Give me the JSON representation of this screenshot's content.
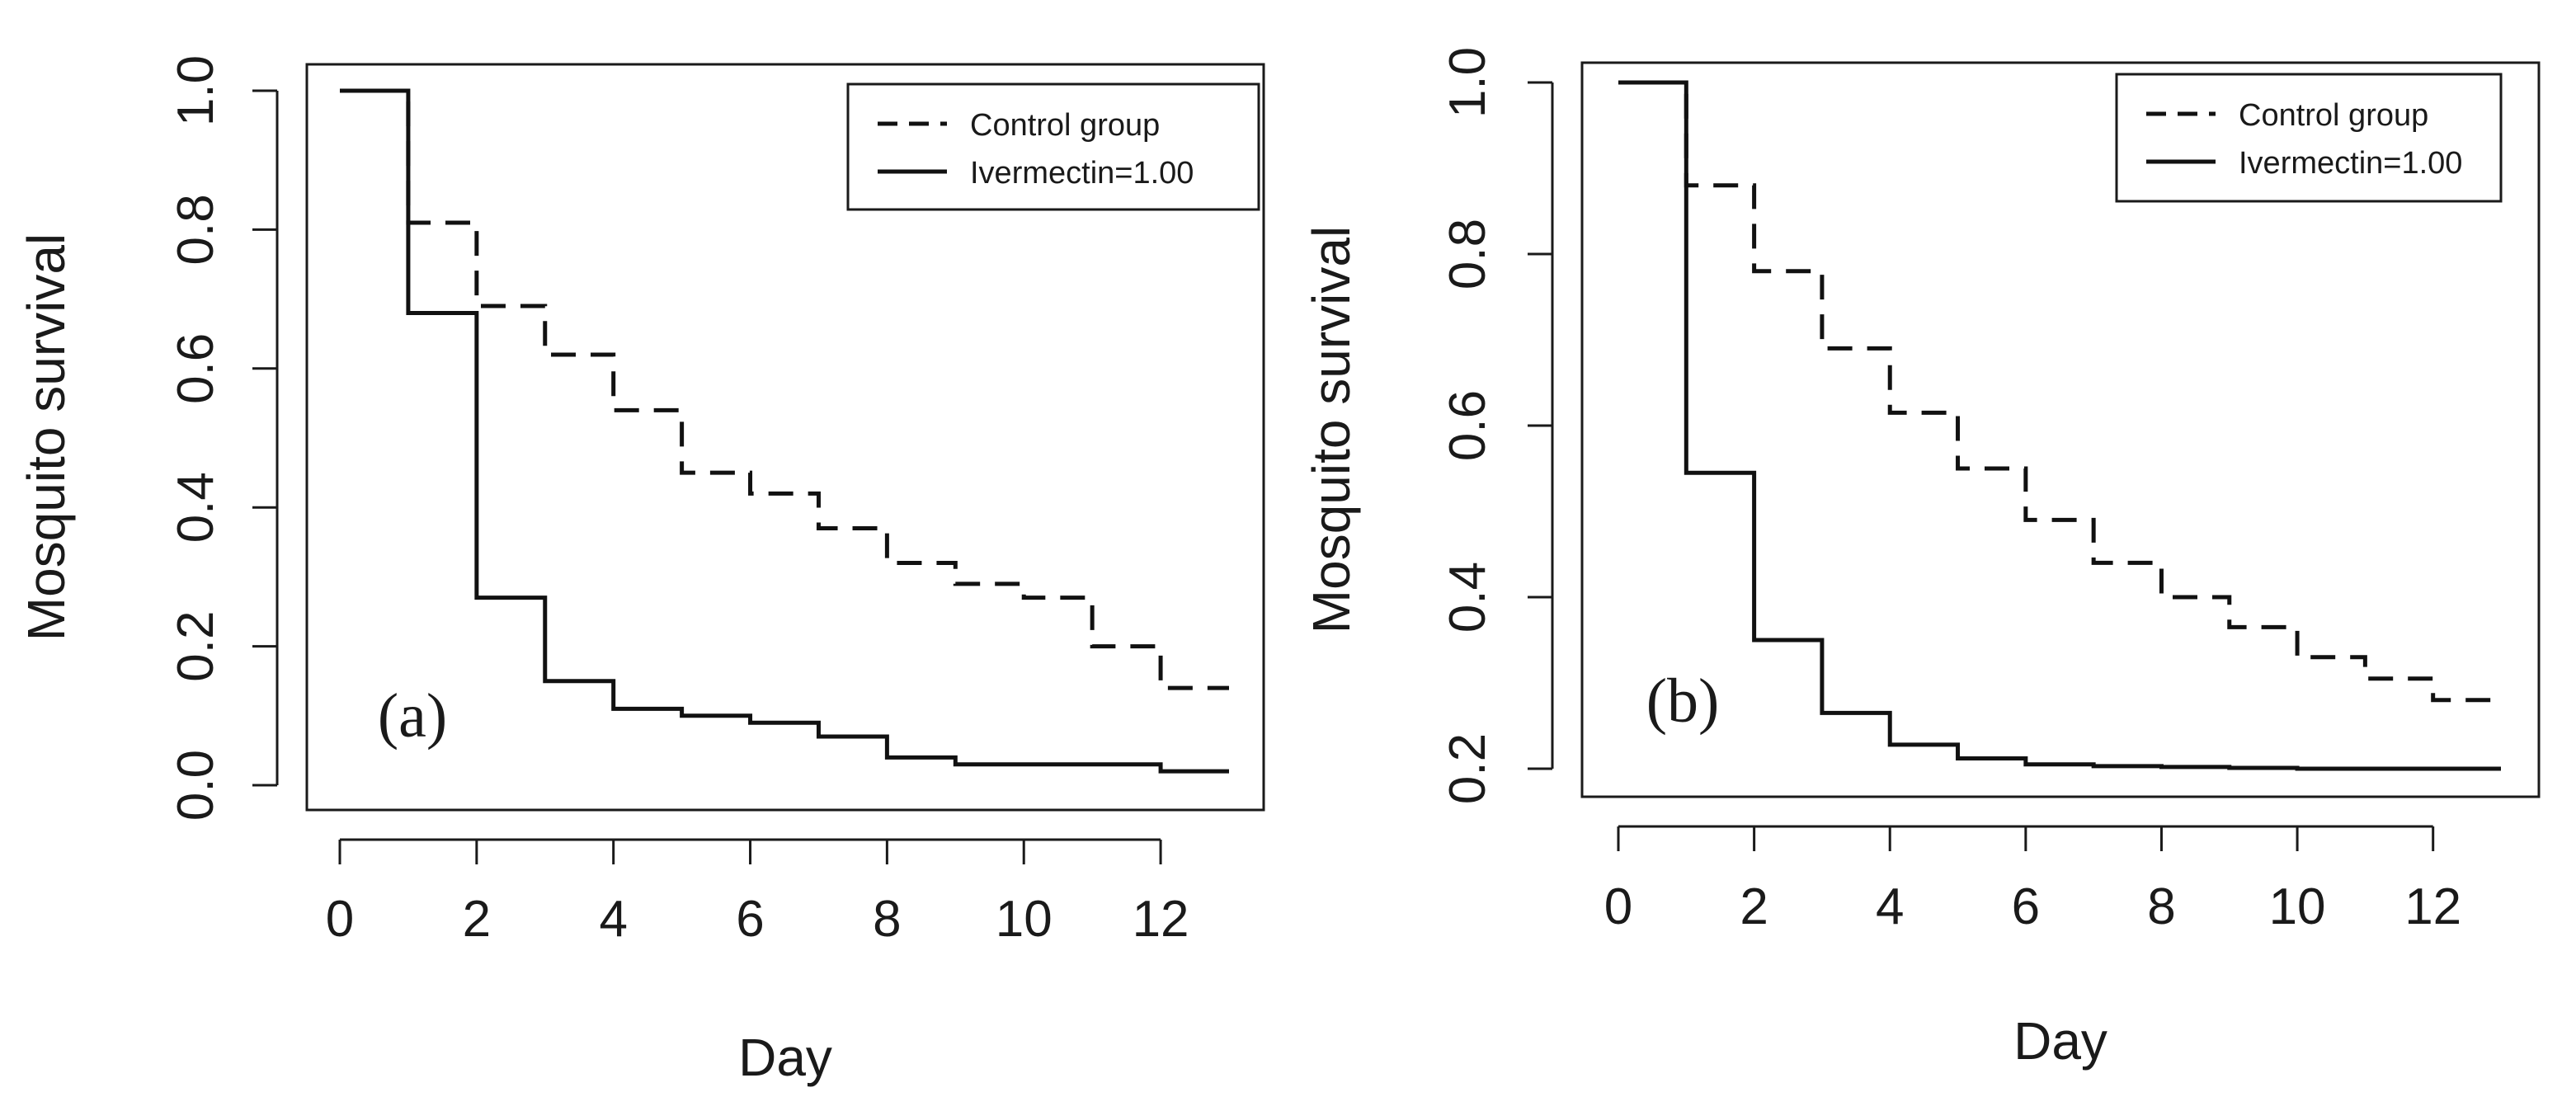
{
  "chart_data": [
    {
      "type": "line",
      "step": true,
      "panel_label": "(a)",
      "xlabel": "Day",
      "ylabel": "Mosquito survival",
      "xlim": [
        0,
        13
      ],
      "ylim": [
        0,
        1
      ],
      "x_ticks": [
        0,
        2,
        4,
        6,
        8,
        10,
        12
      ],
      "y_ticks": [
        0.0,
        0.2,
        0.4,
        0.6,
        0.8,
        1.0
      ],
      "x_tick_labels": [
        "0",
        "2",
        "4",
        "6",
        "8",
        "10",
        "12"
      ],
      "y_tick_labels": [
        "0.0",
        "0.2",
        "0.4",
        "0.6",
        "0.8",
        "1.0"
      ],
      "grid": false,
      "legend": {
        "position": "top-right"
      },
      "series": [
        {
          "name": "Control group",
          "style": "dashed",
          "x": [
            0,
            1,
            2,
            3,
            4,
            5,
            6,
            7,
            8,
            9,
            10,
            11,
            12,
            13
          ],
          "y": [
            1.0,
            0.81,
            0.69,
            0.62,
            0.54,
            0.45,
            0.42,
            0.37,
            0.32,
            0.29,
            0.27,
            0.2,
            0.14,
            0.14
          ]
        },
        {
          "name": "Ivermectin=1.00",
          "style": "solid",
          "x": [
            0,
            1,
            2,
            3,
            4,
            5,
            6,
            7,
            8,
            9,
            10,
            11,
            12,
            13
          ],
          "y": [
            1.0,
            0.68,
            0.27,
            0.15,
            0.11,
            0.1,
            0.09,
            0.07,
            0.04,
            0.03,
            0.03,
            0.03,
            0.02,
            0.02
          ]
        }
      ]
    },
    {
      "type": "line",
      "step": true,
      "panel_label": "(b)",
      "xlabel": "Day",
      "ylabel": "Mosquito survival",
      "xlim": [
        0,
        13
      ],
      "ylim": [
        0.2,
        1
      ],
      "x_ticks": [
        0,
        2,
        4,
        6,
        8,
        10,
        12
      ],
      "y_ticks": [
        0.2,
        0.4,
        0.6,
        0.8,
        1.0
      ],
      "x_tick_labels": [
        "0",
        "2",
        "4",
        "6",
        "8",
        "10",
        "12"
      ],
      "y_tick_labels": [
        "0.2",
        "0.4",
        "0.6",
        "0.8",
        "1.0"
      ],
      "grid": false,
      "legend": {
        "position": "top-right"
      },
      "series": [
        {
          "name": "Control group",
          "style": "dashed",
          "x": [
            0,
            1,
            2,
            3,
            4,
            5,
            6,
            7,
            8,
            9,
            10,
            11,
            12,
            13
          ],
          "y": [
            1.0,
            0.88,
            0.78,
            0.69,
            0.615,
            0.55,
            0.49,
            0.44,
            0.4,
            0.365,
            0.33,
            0.305,
            0.28,
            0.28
          ]
        },
        {
          "name": "Ivermectin=1.00",
          "style": "solid",
          "x": [
            0,
            1,
            2,
            3,
            4,
            5,
            6,
            7,
            8,
            9,
            10,
            11,
            12,
            13
          ],
          "y": [
            1.0,
            0.545,
            0.35,
            0.265,
            0.228,
            0.212,
            0.205,
            0.203,
            0.202,
            0.201,
            0.2,
            0.2,
            0.2,
            0.2
          ]
        }
      ]
    }
  ]
}
